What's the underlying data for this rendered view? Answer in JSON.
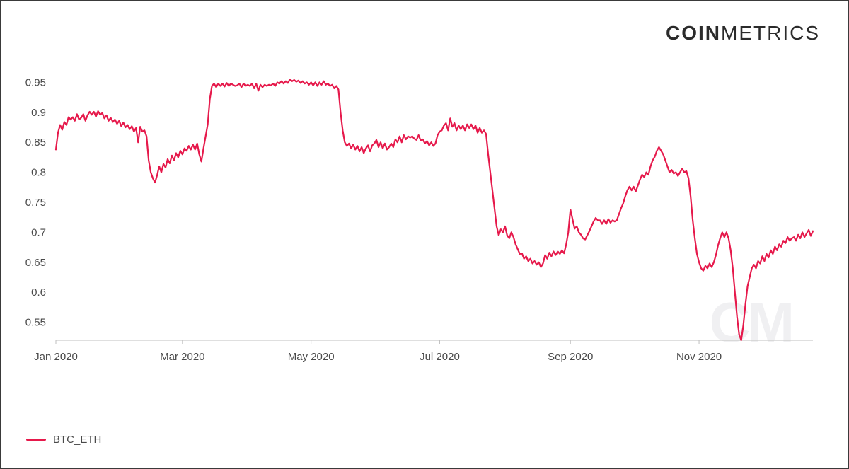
{
  "brand": {
    "left": "COIN",
    "right": "METRICS",
    "watermark": "CM"
  },
  "chart": {
    "type": "line",
    "series_name": "BTC_ETH",
    "line_color": "#e6194b",
    "line_width": 2.2,
    "background_color": "#ffffff",
    "border_color": "#3a3a3a",
    "axis_color": "#bfbfbf",
    "tick_color": "#4a4a4a",
    "tick_fontsize": 15,
    "y": {
      "min": 0.52,
      "max": 0.98,
      "ticks": [
        0.55,
        0.6,
        0.65,
        0.7,
        0.75,
        0.8,
        0.85,
        0.9,
        0.95
      ]
    },
    "x": {
      "min": 0,
      "max": 359,
      "tick_positions": [
        0,
        60,
        121,
        182,
        244,
        305
      ],
      "tick_labels": [
        "Jan 2020",
        "Mar 2020",
        "May 2020",
        "Jul 2020",
        "Sep 2020",
        "Nov 2020"
      ]
    },
    "data": [
      [
        0,
        0.838
      ],
      [
        1,
        0.866
      ],
      [
        2,
        0.879
      ],
      [
        3,
        0.871
      ],
      [
        4,
        0.884
      ],
      [
        5,
        0.879
      ],
      [
        6,
        0.892
      ],
      [
        7,
        0.888
      ],
      [
        8,
        0.892
      ],
      [
        9,
        0.886
      ],
      [
        10,
        0.897
      ],
      [
        11,
        0.888
      ],
      [
        12,
        0.891
      ],
      [
        13,
        0.897
      ],
      [
        14,
        0.886
      ],
      [
        15,
        0.895
      ],
      [
        16,
        0.901
      ],
      [
        17,
        0.896
      ],
      [
        18,
        0.901
      ],
      [
        19,
        0.893
      ],
      [
        20,
        0.902
      ],
      [
        21,
        0.896
      ],
      [
        22,
        0.899
      ],
      [
        23,
        0.89
      ],
      [
        24,
        0.895
      ],
      [
        25,
        0.886
      ],
      [
        26,
        0.891
      ],
      [
        27,
        0.884
      ],
      [
        28,
        0.888
      ],
      [
        29,
        0.881
      ],
      [
        30,
        0.886
      ],
      [
        31,
        0.877
      ],
      [
        32,
        0.883
      ],
      [
        33,
        0.875
      ],
      [
        34,
        0.879
      ],
      [
        35,
        0.872
      ],
      [
        36,
        0.877
      ],
      [
        37,
        0.868
      ],
      [
        38,
        0.874
      ],
      [
        39,
        0.85
      ],
      [
        40,
        0.876
      ],
      [
        41,
        0.868
      ],
      [
        42,
        0.87
      ],
      [
        43,
        0.86
      ],
      [
        44,
        0.82
      ],
      [
        45,
        0.8
      ],
      [
        46,
        0.79
      ],
      [
        47,
        0.783
      ],
      [
        48,
        0.795
      ],
      [
        49,
        0.81
      ],
      [
        50,
        0.8
      ],
      [
        51,
        0.814
      ],
      [
        52,
        0.808
      ],
      [
        53,
        0.822
      ],
      [
        54,
        0.815
      ],
      [
        55,
        0.828
      ],
      [
        56,
        0.82
      ],
      [
        57,
        0.832
      ],
      [
        58,
        0.825
      ],
      [
        59,
        0.836
      ],
      [
        60,
        0.83
      ],
      [
        61,
        0.84
      ],
      [
        62,
        0.836
      ],
      [
        63,
        0.844
      ],
      [
        64,
        0.838
      ],
      [
        65,
        0.846
      ],
      [
        66,
        0.838
      ],
      [
        67,
        0.848
      ],
      [
        68,
        0.83
      ],
      [
        69,
        0.818
      ],
      [
        70,
        0.84
      ],
      [
        71,
        0.86
      ],
      [
        72,
        0.88
      ],
      [
        73,
        0.922
      ],
      [
        74,
        0.944
      ],
      [
        75,
        0.948
      ],
      [
        76,
        0.942
      ],
      [
        77,
        0.948
      ],
      [
        78,
        0.944
      ],
      [
        79,
        0.948
      ],
      [
        80,
        0.943
      ],
      [
        81,
        0.949
      ],
      [
        82,
        0.944
      ],
      [
        83,
        0.948
      ],
      [
        84,
        0.946
      ],
      [
        85,
        0.944
      ],
      [
        86,
        0.945
      ],
      [
        87,
        0.948
      ],
      [
        88,
        0.942
      ],
      [
        89,
        0.948
      ],
      [
        90,
        0.944
      ],
      [
        91,
        0.946
      ],
      [
        92,
        0.944
      ],
      [
        93,
        0.948
      ],
      [
        94,
        0.94
      ],
      [
        95,
        0.948
      ],
      [
        96,
        0.936
      ],
      [
        97,
        0.946
      ],
      [
        98,
        0.942
      ],
      [
        99,
        0.946
      ],
      [
        100,
        0.944
      ],
      [
        101,
        0.946
      ],
      [
        102,
        0.945
      ],
      [
        103,
        0.948
      ],
      [
        104,
        0.944
      ],
      [
        105,
        0.95
      ],
      [
        106,
        0.948
      ],
      [
        107,
        0.952
      ],
      [
        108,
        0.948
      ],
      [
        109,
        0.952
      ],
      [
        110,
        0.949
      ],
      [
        111,
        0.955
      ],
      [
        112,
        0.952
      ],
      [
        113,
        0.954
      ],
      [
        114,
        0.951
      ],
      [
        115,
        0.953
      ],
      [
        116,
        0.949
      ],
      [
        117,
        0.952
      ],
      [
        118,
        0.948
      ],
      [
        119,
        0.95
      ],
      [
        120,
        0.946
      ],
      [
        121,
        0.95
      ],
      [
        122,
        0.945
      ],
      [
        123,
        0.95
      ],
      [
        124,
        0.944
      ],
      [
        125,
        0.95
      ],
      [
        126,
        0.946
      ],
      [
        127,
        0.952
      ],
      [
        128,
        0.946
      ],
      [
        129,
        0.948
      ],
      [
        130,
        0.944
      ],
      [
        131,
        0.946
      ],
      [
        132,
        0.94
      ],
      [
        133,
        0.944
      ],
      [
        134,
        0.938
      ],
      [
        135,
        0.9
      ],
      [
        136,
        0.87
      ],
      [
        137,
        0.85
      ],
      [
        138,
        0.844
      ],
      [
        139,
        0.848
      ],
      [
        140,
        0.84
      ],
      [
        141,
        0.846
      ],
      [
        142,
        0.838
      ],
      [
        143,
        0.844
      ],
      [
        144,
        0.835
      ],
      [
        145,
        0.842
      ],
      [
        146,
        0.832
      ],
      [
        147,
        0.84
      ],
      [
        148,
        0.845
      ],
      [
        149,
        0.835
      ],
      [
        150,
        0.845
      ],
      [
        151,
        0.848
      ],
      [
        152,
        0.854
      ],
      [
        153,
        0.842
      ],
      [
        154,
        0.85
      ],
      [
        155,
        0.84
      ],
      [
        156,
        0.848
      ],
      [
        157,
        0.838
      ],
      [
        158,
        0.842
      ],
      [
        159,
        0.848
      ],
      [
        160,
        0.842
      ],
      [
        161,
        0.855
      ],
      [
        162,
        0.85
      ],
      [
        163,
        0.86
      ],
      [
        164,
        0.85
      ],
      [
        165,
        0.862
      ],
      [
        166,
        0.855
      ],
      [
        167,
        0.86
      ],
      [
        168,
        0.858
      ],
      [
        169,
        0.86
      ],
      [
        170,
        0.856
      ],
      [
        171,
        0.854
      ],
      [
        172,
        0.862
      ],
      [
        173,
        0.853
      ],
      [
        174,
        0.855
      ],
      [
        175,
        0.848
      ],
      [
        176,
        0.852
      ],
      [
        177,
        0.845
      ],
      [
        178,
        0.85
      ],
      [
        179,
        0.844
      ],
      [
        180,
        0.848
      ],
      [
        181,
        0.862
      ],
      [
        182,
        0.868
      ],
      [
        183,
        0.87
      ],
      [
        184,
        0.878
      ],
      [
        185,
        0.882
      ],
      [
        186,
        0.87
      ],
      [
        187,
        0.89
      ],
      [
        188,
        0.876
      ],
      [
        189,
        0.882
      ],
      [
        190,
        0.87
      ],
      [
        191,
        0.878
      ],
      [
        192,
        0.872
      ],
      [
        193,
        0.878
      ],
      [
        194,
        0.87
      ],
      [
        195,
        0.88
      ],
      [
        196,
        0.874
      ],
      [
        197,
        0.88
      ],
      [
        198,
        0.872
      ],
      [
        199,
        0.878
      ],
      [
        200,
        0.866
      ],
      [
        201,
        0.874
      ],
      [
        202,
        0.866
      ],
      [
        203,
        0.87
      ],
      [
        204,
        0.864
      ],
      [
        205,
        0.83
      ],
      [
        206,
        0.8
      ],
      [
        207,
        0.77
      ],
      [
        208,
        0.74
      ],
      [
        209,
        0.71
      ],
      [
        210,
        0.695
      ],
      [
        211,
        0.705
      ],
      [
        212,
        0.7
      ],
      [
        213,
        0.71
      ],
      [
        214,
        0.695
      ],
      [
        215,
        0.69
      ],
      [
        216,
        0.7
      ],
      [
        217,
        0.692
      ],
      [
        218,
        0.68
      ],
      [
        219,
        0.672
      ],
      [
        220,
        0.664
      ],
      [
        221,
        0.665
      ],
      [
        222,
        0.656
      ],
      [
        223,
        0.66
      ],
      [
        224,
        0.652
      ],
      [
        225,
        0.656
      ],
      [
        226,
        0.648
      ],
      [
        227,
        0.652
      ],
      [
        228,
        0.646
      ],
      [
        229,
        0.65
      ],
      [
        230,
        0.642
      ],
      [
        231,
        0.648
      ],
      [
        232,
        0.662
      ],
      [
        233,
        0.656
      ],
      [
        234,
        0.666
      ],
      [
        235,
        0.66
      ],
      [
        236,
        0.668
      ],
      [
        237,
        0.662
      ],
      [
        238,
        0.668
      ],
      [
        239,
        0.664
      ],
      [
        240,
        0.67
      ],
      [
        241,
        0.665
      ],
      [
        242,
        0.68
      ],
      [
        243,
        0.7
      ],
      [
        244,
        0.738
      ],
      [
        245,
        0.722
      ],
      [
        246,
        0.706
      ],
      [
        247,
        0.71
      ],
      [
        248,
        0.7
      ],
      [
        249,
        0.696
      ],
      [
        250,
        0.69
      ],
      [
        251,
        0.688
      ],
      [
        252,
        0.695
      ],
      [
        253,
        0.702
      ],
      [
        254,
        0.71
      ],
      [
        255,
        0.718
      ],
      [
        256,
        0.724
      ],
      [
        257,
        0.72
      ],
      [
        258,
        0.72
      ],
      [
        259,
        0.714
      ],
      [
        260,
        0.72
      ],
      [
        261,
        0.714
      ],
      [
        262,
        0.722
      ],
      [
        263,
        0.716
      ],
      [
        264,
        0.72
      ],
      [
        265,
        0.718
      ],
      [
        266,
        0.72
      ],
      [
        267,
        0.73
      ],
      [
        268,
        0.74
      ],
      [
        269,
        0.748
      ],
      [
        270,
        0.76
      ],
      [
        271,
        0.77
      ],
      [
        272,
        0.776
      ],
      [
        273,
        0.77
      ],
      [
        274,
        0.776
      ],
      [
        275,
        0.768
      ],
      [
        276,
        0.778
      ],
      [
        277,
        0.788
      ],
      [
        278,
        0.796
      ],
      [
        279,
        0.792
      ],
      [
        280,
        0.8
      ],
      [
        281,
        0.796
      ],
      [
        282,
        0.81
      ],
      [
        283,
        0.82
      ],
      [
        284,
        0.826
      ],
      [
        285,
        0.836
      ],
      [
        286,
        0.842
      ],
      [
        287,
        0.836
      ],
      [
        288,
        0.83
      ],
      [
        289,
        0.82
      ],
      [
        290,
        0.81
      ],
      [
        291,
        0.8
      ],
      [
        292,
        0.804
      ],
      [
        293,
        0.798
      ],
      [
        294,
        0.8
      ],
      [
        295,
        0.794
      ],
      [
        296,
        0.8
      ],
      [
        297,
        0.806
      ],
      [
        298,
        0.8
      ],
      [
        299,
        0.802
      ],
      [
        300,
        0.79
      ],
      [
        301,
        0.76
      ],
      [
        302,
        0.72
      ],
      [
        303,
        0.69
      ],
      [
        304,
        0.664
      ],
      [
        305,
        0.65
      ],
      [
        306,
        0.64
      ],
      [
        307,
        0.636
      ],
      [
        308,
        0.644
      ],
      [
        309,
        0.64
      ],
      [
        310,
        0.648
      ],
      [
        311,
        0.642
      ],
      [
        312,
        0.65
      ],
      [
        313,
        0.662
      ],
      [
        314,
        0.678
      ],
      [
        315,
        0.69
      ],
      [
        316,
        0.7
      ],
      [
        317,
        0.692
      ],
      [
        318,
        0.7
      ],
      [
        319,
        0.69
      ],
      [
        320,
        0.67
      ],
      [
        321,
        0.64
      ],
      [
        322,
        0.6
      ],
      [
        323,
        0.56
      ],
      [
        324,
        0.53
      ],
      [
        325,
        0.52
      ],
      [
        326,
        0.545
      ],
      [
        327,
        0.58
      ],
      [
        328,
        0.61
      ],
      [
        329,
        0.625
      ],
      [
        330,
        0.64
      ],
      [
        331,
        0.646
      ],
      [
        332,
        0.64
      ],
      [
        333,
        0.652
      ],
      [
        334,
        0.648
      ],
      [
        335,
        0.66
      ],
      [
        336,
        0.652
      ],
      [
        337,
        0.664
      ],
      [
        338,
        0.658
      ],
      [
        339,
        0.67
      ],
      [
        340,
        0.664
      ],
      [
        341,
        0.676
      ],
      [
        342,
        0.67
      ],
      [
        343,
        0.68
      ],
      [
        344,
        0.676
      ],
      [
        345,
        0.686
      ],
      [
        346,
        0.682
      ],
      [
        347,
        0.692
      ],
      [
        348,
        0.686
      ],
      [
        349,
        0.69
      ],
      [
        350,
        0.692
      ],
      [
        351,
        0.686
      ],
      [
        352,
        0.696
      ],
      [
        353,
        0.69
      ],
      [
        354,
        0.7
      ],
      [
        355,
        0.692
      ],
      [
        356,
        0.698
      ],
      [
        357,
        0.704
      ],
      [
        358,
        0.694
      ],
      [
        359,
        0.702
      ]
    ]
  },
  "legend": {
    "label": "BTC_ETH"
  }
}
